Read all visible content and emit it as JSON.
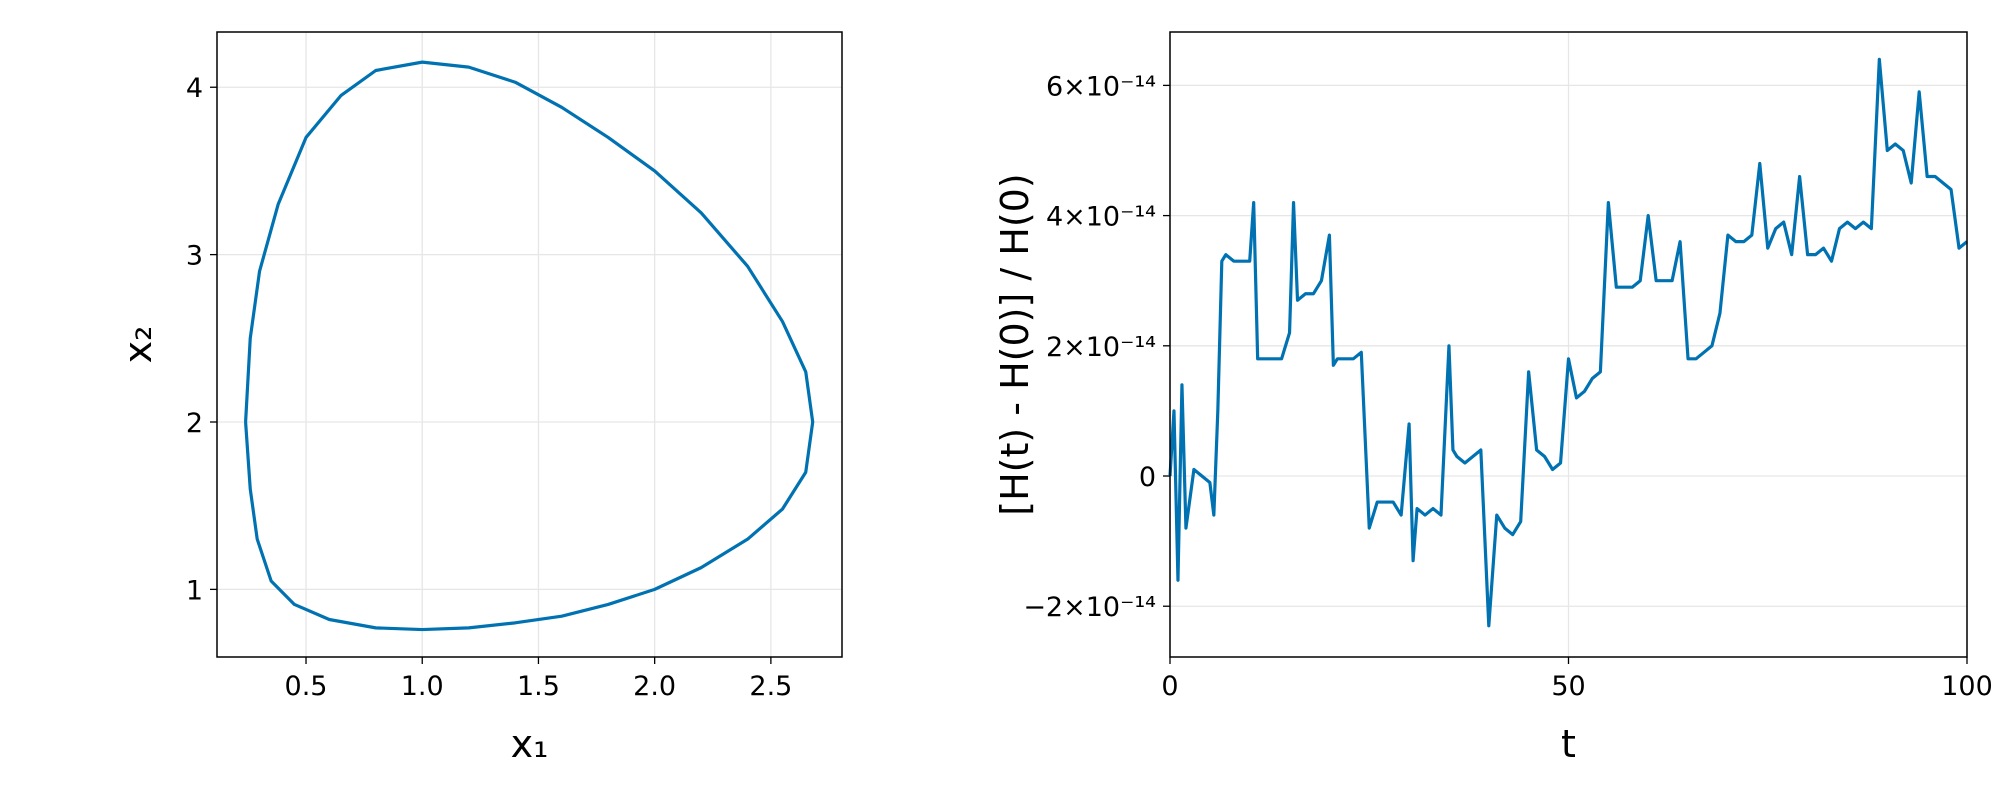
{
  "chart_data": [
    {
      "type": "line",
      "color": "#0072b2",
      "grid": true,
      "xlabel": "x₁",
      "ylabel": "x₂",
      "x": [
        0.24,
        0.26,
        0.3,
        0.38,
        0.5,
        0.65,
        0.8,
        1.0,
        1.2,
        1.4,
        1.6,
        1.8,
        2.0,
        2.2,
        2.4,
        2.55,
        2.65,
        2.68,
        2.65,
        2.55,
        2.4,
        2.2,
        2.0,
        1.8,
        1.6,
        1.4,
        1.2,
        1.0,
        0.8,
        0.6,
        0.45,
        0.35,
        0.29,
        0.26,
        0.24
      ],
      "values": [
        2.0,
        2.5,
        2.9,
        3.3,
        3.7,
        3.95,
        4.1,
        4.15,
        4.12,
        4.03,
        3.88,
        3.7,
        3.5,
        3.25,
        2.93,
        2.6,
        2.3,
        2.0,
        1.7,
        1.48,
        1.3,
        1.13,
        1.0,
        0.91,
        0.84,
        0.8,
        0.77,
        0.76,
        0.77,
        0.82,
        0.91,
        1.05,
        1.3,
        1.6,
        2.0
      ],
      "xlim": [
        0.117,
        2.806
      ],
      "ylim": [
        0.596,
        4.33
      ],
      "xticks": [
        0.5,
        {
          "value": 1,
          "label": "1.0"
        },
        1.5,
        {
          "value": 2,
          "label": "2.0"
        },
        2.5
      ],
      "yticks": [
        1,
        2,
        3,
        4
      ]
    },
    {
      "type": "line",
      "color": "#0072b2",
      "grid": true,
      "xlabel": "t",
      "ylabel": "[H(t) - H(0)] / H(0)",
      "x": [
        0,
        0.5,
        1,
        1.5,
        2,
        3,
        4,
        5,
        5.5,
        6,
        6.5,
        7,
        8,
        9,
        10,
        10.5,
        11,
        12,
        13,
        14,
        15,
        15.5,
        16,
        17,
        18,
        19,
        20,
        20.5,
        21,
        22,
        23,
        24,
        25,
        26,
        27,
        28,
        29,
        30,
        30.5,
        31,
        32,
        33,
        34,
        35,
        35.5,
        36,
        37,
        38,
        39,
        40,
        41,
        42,
        43,
        44,
        45,
        46,
        47,
        48,
        49,
        50,
        51,
        52,
        53,
        54,
        55,
        56,
        57,
        58,
        59,
        60,
        61,
        62,
        63,
        64,
        65,
        66,
        67,
        68,
        69,
        70,
        71,
        72,
        73,
        74,
        75,
        76,
        77,
        78,
        79,
        80,
        81,
        82,
        83,
        84,
        85,
        86,
        87,
        88,
        89,
        90,
        91,
        92,
        93,
        94,
        95,
        96,
        97,
        98,
        99,
        100
      ],
      "values": [
        0,
        1e-14,
        -1.6e-14,
        1.4e-14,
        -8e-15,
        1e-15,
        0,
        -1e-15,
        -6e-15,
        1e-14,
        3.3e-14,
        3.4e-14,
        3.3e-14,
        3.3e-14,
        3.3e-14,
        4.2e-14,
        1.8e-14,
        1.8e-14,
        1.8e-14,
        1.8e-14,
        2.2e-14,
        4.2e-14,
        2.7e-14,
        2.8e-14,
        2.8e-14,
        3e-14,
        3.7e-14,
        1.7e-14,
        1.8e-14,
        1.8e-14,
        1.8e-14,
        1.9e-14,
        -8e-15,
        -4e-15,
        -4e-15,
        -4e-15,
        -6e-15,
        8e-15,
        -1.3e-14,
        -5e-15,
        -6e-15,
        -5e-15,
        -6e-15,
        2e-14,
        4e-15,
        3e-15,
        2e-15,
        3e-15,
        4e-15,
        -2.3e-14,
        -6e-15,
        -8e-15,
        -9e-15,
        -7e-15,
        1.6e-14,
        4e-15,
        3e-15,
        1e-15,
        2e-15,
        1.8e-14,
        1.2e-14,
        1.3e-14,
        1.5e-14,
        1.6e-14,
        4.2e-14,
        2.9e-14,
        2.9e-14,
        2.9e-14,
        3e-14,
        4e-14,
        3e-14,
        3e-14,
        3e-14,
        3.6e-14,
        1.8e-14,
        1.8e-14,
        1.9e-14,
        2e-14,
        2.5e-14,
        3.7e-14,
        3.6e-14,
        3.6e-14,
        3.7e-14,
        4.8e-14,
        3.5e-14,
        3.8e-14,
        3.9e-14,
        3.4e-14,
        4.6e-14,
        3.4e-14,
        3.4e-14,
        3.5e-14,
        3.3e-14,
        3.8e-14,
        3.9e-14,
        3.8e-14,
        3.9e-14,
        3.8e-14,
        6.4e-14,
        5e-14,
        5.1e-14,
        5e-14,
        4.5e-14,
        5.9e-14,
        4.6e-14,
        4.6e-14,
        4.5e-14,
        4.4e-14,
        3.5e-14,
        3.6e-14
      ],
      "xlim": [
        0,
        100
      ],
      "ylim": [
        -2.78e-14,
        6.82e-14
      ],
      "xticks": [
        0,
        50,
        100
      ],
      "yticks": [
        {
          "value": -2e-14,
          "label": "−2×10⁻¹⁴"
        },
        0,
        {
          "value": 2e-14,
          "label": "2×10⁻¹⁴"
        },
        {
          "value": 4e-14,
          "label": "4×10⁻¹⁴"
        },
        {
          "value": 6e-14,
          "label": "6×10⁻¹⁴"
        }
      ]
    }
  ]
}
